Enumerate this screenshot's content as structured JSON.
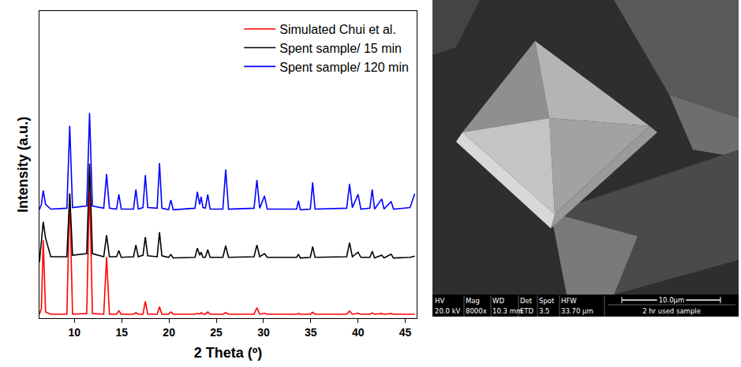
{
  "chart_data": {
    "type": "line",
    "x_label": "2 Theta (º)",
    "y_label": "Intensity (a.u.)",
    "x": [
      6.3,
      6.5,
      6.7,
      6.95,
      7.5,
      9.2,
      9.5,
      9.8,
      11.3,
      11.6,
      11.9,
      13.1,
      13.4,
      13.7,
      14.45,
      14.7,
      14.95,
      16.25,
      16.5,
      16.75,
      17.25,
      17.5,
      17.75,
      18.75,
      19.0,
      19.25,
      19.95,
      20.2,
      20.45,
      22.75,
      23.0,
      23.25,
      23.4,
      23.6,
      23.85,
      24.1,
      24.35,
      25.7,
      26.0,
      26.3,
      29.0,
      29.3,
      29.6,
      30.1,
      30.4,
      33.5,
      33.7,
      33.9,
      34.95,
      35.2,
      35.45,
      38.8,
      39.1,
      39.4,
      40.0,
      40.3,
      41.25,
      41.5,
      41.75,
      42.5,
      42.75,
      43.5,
      43.75,
      45.5,
      46.0
    ],
    "series": [
      {
        "name": "Simulated Chui et al.",
        "color": "#ff0000",
        "values": [
          1.3,
          3,
          25.4,
          2,
          1.3,
          1.3,
          40.3,
          1.3,
          1.5,
          43.7,
          1.5,
          1.3,
          19.9,
          1.3,
          1.3,
          2.4,
          1.3,
          1.3,
          1.8,
          1.3,
          1.3,
          5.5,
          1.3,
          1.3,
          3.7,
          1.3,
          1.3,
          2.0,
          1.3,
          1.3,
          1.6,
          1.3,
          1.8,
          1.3,
          1.3,
          2.0,
          1.3,
          1.3,
          1.8,
          1.3,
          1.3,
          3.4,
          1.3,
          1.6,
          1.3,
          1.3,
          1.5,
          1.3,
          1.3,
          1.9,
          1.3,
          1.3,
          2.3,
          1.3,
          1.6,
          1.3,
          1.3,
          1.7,
          1.3,
          1.5,
          1.3,
          1.5,
          1.3,
          1.3,
          1.3
        ]
      },
      {
        "name": "Spent sample/ 15 min",
        "color": "#000000",
        "values": [
          18.3,
          24,
          31.4,
          26,
          20,
          20,
          40.6,
          20.5,
          21,
          50.3,
          21,
          20,
          27.0,
          20,
          20,
          22.0,
          19.8,
          20,
          23.8,
          20,
          20.5,
          26.4,
          20.3,
          20,
          28.0,
          20.3,
          19.8,
          20.7,
          19.6,
          19.8,
          22.8,
          20.5,
          21.5,
          19.8,
          19.8,
          22.3,
          19.8,
          19.8,
          23.6,
          19.8,
          20,
          23.8,
          20,
          21,
          19.8,
          19.8,
          20.8,
          19.6,
          19.8,
          23.3,
          19.8,
          20,
          24.6,
          20,
          21.5,
          19.8,
          19.8,
          21.8,
          19.6,
          20.5,
          19.6,
          20.8,
          19.6,
          19.8,
          20.2
        ]
      },
      {
        "name": "Spent sample/ 120 min",
        "color": "#0000ff",
        "values": [
          35.3,
          37,
          41.6,
          37,
          35.5,
          35.8,
          62.6,
          36,
          36.5,
          66.8,
          36.5,
          35.8,
          46.9,
          35.8,
          35.5,
          40.3,
          35.5,
          35.5,
          41.9,
          35.5,
          36,
          46.6,
          36,
          35.8,
          50.5,
          35.8,
          35.3,
          38.5,
          35.3,
          35.8,
          41.1,
          37,
          39.5,
          36,
          35.8,
          40.3,
          35.5,
          35.5,
          48.4,
          35.5,
          35.8,
          45.0,
          35.8,
          39.8,
          35.5,
          35.5,
          38.2,
          35.3,
          35.5,
          44.2,
          35.5,
          35.8,
          43.7,
          36,
          40.3,
          35.5,
          35.8,
          41.9,
          35.5,
          38.8,
          35.5,
          38,
          35.5,
          36,
          40.5
        ]
      }
    ],
    "xlim": [
      6.3,
      46.2
    ],
    "xticks": [
      10,
      15,
      20,
      25,
      30,
      35,
      40,
      45
    ],
    "ylim": [
      0,
      100
    ],
    "tick_labels": "x",
    "legend": "top-right",
    "grid": false
  },
  "sem_image": {
    "info_bar": {
      "headers": [
        "HV",
        "Mag",
        "WD",
        "Det",
        "Spot",
        "HFW"
      ],
      "values": [
        "20.0 kV",
        "8000x",
        "10.3 mm",
        "ETD",
        "3.5",
        "33.70 µm"
      ]
    },
    "scale_bar": "10.0µm",
    "caption": "2 hr used sample"
  }
}
